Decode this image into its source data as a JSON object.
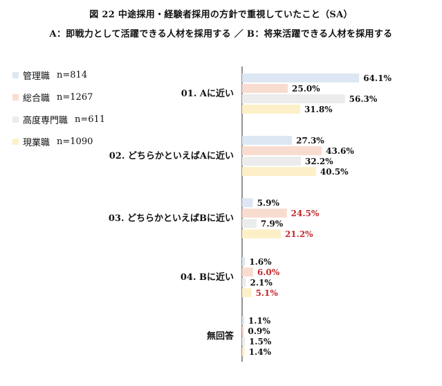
{
  "title_line1": "図 22 中途採用・経験者採用の方針で重視していたこと（SA）",
  "title_line2": "A：即戦力として活躍できる人材を採用する ／ B：将来活躍できる人材を採用する",
  "chart_data": {
    "type": "bar",
    "orientation": "horizontal",
    "categories": [
      "01. Aに近い",
      "02. どちらかといえばAに近い",
      "03. どちらかといえばBに近い",
      "04. Bに近い",
      "無回答"
    ],
    "series": [
      {
        "name": "管理職",
        "n_label": "n=814",
        "color": "#dde7f3",
        "values": [
          64.1,
          27.3,
          5.9,
          1.6,
          1.1
        ]
      },
      {
        "name": "総合職",
        "n_label": "n=1267",
        "color": "#f9dcd0",
        "values": [
          25.0,
          43.6,
          24.5,
          6.0,
          0.9
        ]
      },
      {
        "name": "高度専門職",
        "n_label": "n=611",
        "color": "#ececec",
        "values": [
          56.3,
          32.2,
          7.9,
          2.1,
          1.5
        ]
      },
      {
        "name": "現業職",
        "n_label": "n=1090",
        "color": "#fdf0c8",
        "values": [
          31.8,
          40.5,
          21.2,
          5.1,
          1.4
        ]
      }
    ],
    "value_labels": [
      [
        "64.1%",
        "27.3%",
        "5.9%",
        "1.6%",
        "1.1%"
      ],
      [
        "25.0%",
        "43.6%",
        "24.5%",
        "6.0%",
        "0.9%"
      ],
      [
        "56.3%",
        "32.2%",
        "7.9%",
        "2.1%",
        "1.5%"
      ],
      [
        "31.8%",
        "40.5%",
        "21.2%",
        "5.1%",
        "1.4%"
      ]
    ],
    "highlight_color": "#c0282d",
    "highlighted_labels": [
      [
        1,
        2
      ],
      [
        1,
        3
      ],
      [
        3,
        2
      ],
      [
        3,
        3
      ]
    ],
    "xlim": [
      0,
      100
    ],
    "legend_position": "top-left",
    "grid": false
  }
}
